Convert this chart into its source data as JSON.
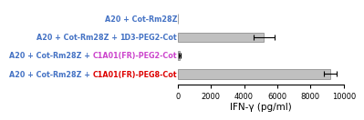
{
  "values": [
    0,
    5200,
    120,
    9200
  ],
  "errors": [
    30,
    620,
    80,
    380
  ],
  "bar_color": "#c0c0c0",
  "bar_edge_color": "#808080",
  "xlim": [
    0,
    10000
  ],
  "xticks": [
    0,
    2000,
    4000,
    6000,
    8000,
    10000
  ],
  "xlabel": "IFN-γ (pg/ml)",
  "xlabel_fontsize": 7.5,
  "tick_fontsize": 6,
  "label_fontsize": 5.8,
  "bar_height": 0.52,
  "background_color": "#ffffff",
  "label_configs": [
    [
      "A20 + Cot-Rm28Z",
      "#4472c4",
      "",
      "#4472c4"
    ],
    [
      "A20 + Cot-Rm28Z + ",
      "#4472c4",
      "1D3-PEG2-Cot",
      "#4472c4"
    ],
    [
      "A20 + Cot-Rm28Z + ",
      "#4472c4",
      "C1A01(FR)-PEG2-Cot",
      "#cc44cc"
    ],
    [
      "A20 + Cot-Rm28Z + ",
      "#4472c4",
      "C1A01(FR)-PEG8-Cot",
      "#dd0000"
    ]
  ]
}
